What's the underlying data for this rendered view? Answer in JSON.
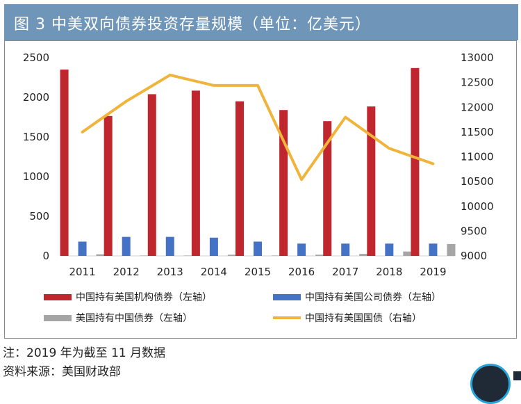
{
  "header": {
    "title": "图 3  中美双向债券投资存量规模（单位：亿美元）"
  },
  "colors": {
    "header_bg": "#6f96b8",
    "series_red": "#c0262d",
    "series_blue": "#4472c4",
    "series_gray": "#a5a5a5",
    "series_gold": "#f0b43a"
  },
  "chart_data": {
    "type": "bar",
    "categories": [
      "2011",
      "2012",
      "2013",
      "2014",
      "2015",
      "2016",
      "2017",
      "2018",
      "2019"
    ],
    "ylim_left": [
      0,
      2500
    ],
    "yticks_left": [
      "0",
      "500",
      "1000",
      "1500",
      "2000",
      "2500"
    ],
    "ylim_right": [
      9000,
      13000
    ],
    "yticks_right": [
      "9000",
      "9500",
      "10000",
      "10500",
      "11000",
      "11500",
      "12000",
      "12500",
      "13000"
    ],
    "series": [
      {
        "name": "中国持有美国机构债券（左轴）",
        "axis": "left",
        "kind": "bar",
        "color": "#c0262d",
        "values": [
          2350,
          1765,
          2040,
          2085,
          1950,
          1840,
          1700,
          1885,
          2370
        ]
      },
      {
        "name": "中国持有美国公司债券（左轴）",
        "axis": "left",
        "kind": "bar",
        "color": "#4472c4",
        "values": [
          180,
          240,
          240,
          230,
          180,
          155,
          155,
          155,
          155
        ]
      },
      {
        "name": "美国持有中国债券（左轴）",
        "axis": "left",
        "kind": "bar",
        "color": "#a5a5a5",
        "values": [
          20,
          5,
          5,
          15,
          5,
          15,
          25,
          55,
          150
        ]
      },
      {
        "name": "中国持有美国国债（右轴）",
        "axis": "right",
        "kind": "line",
        "color": "#f0b43a",
        "values": [
          11500,
          12120,
          12650,
          12440,
          12440,
          10540,
          11800,
          11170,
          10860
        ]
      }
    ],
    "legend": "bottom",
    "grid": false
  },
  "footnotes": {
    "note": "注：2019 年为截至 11 月数据",
    "source": "资料来源：美国财政部"
  }
}
